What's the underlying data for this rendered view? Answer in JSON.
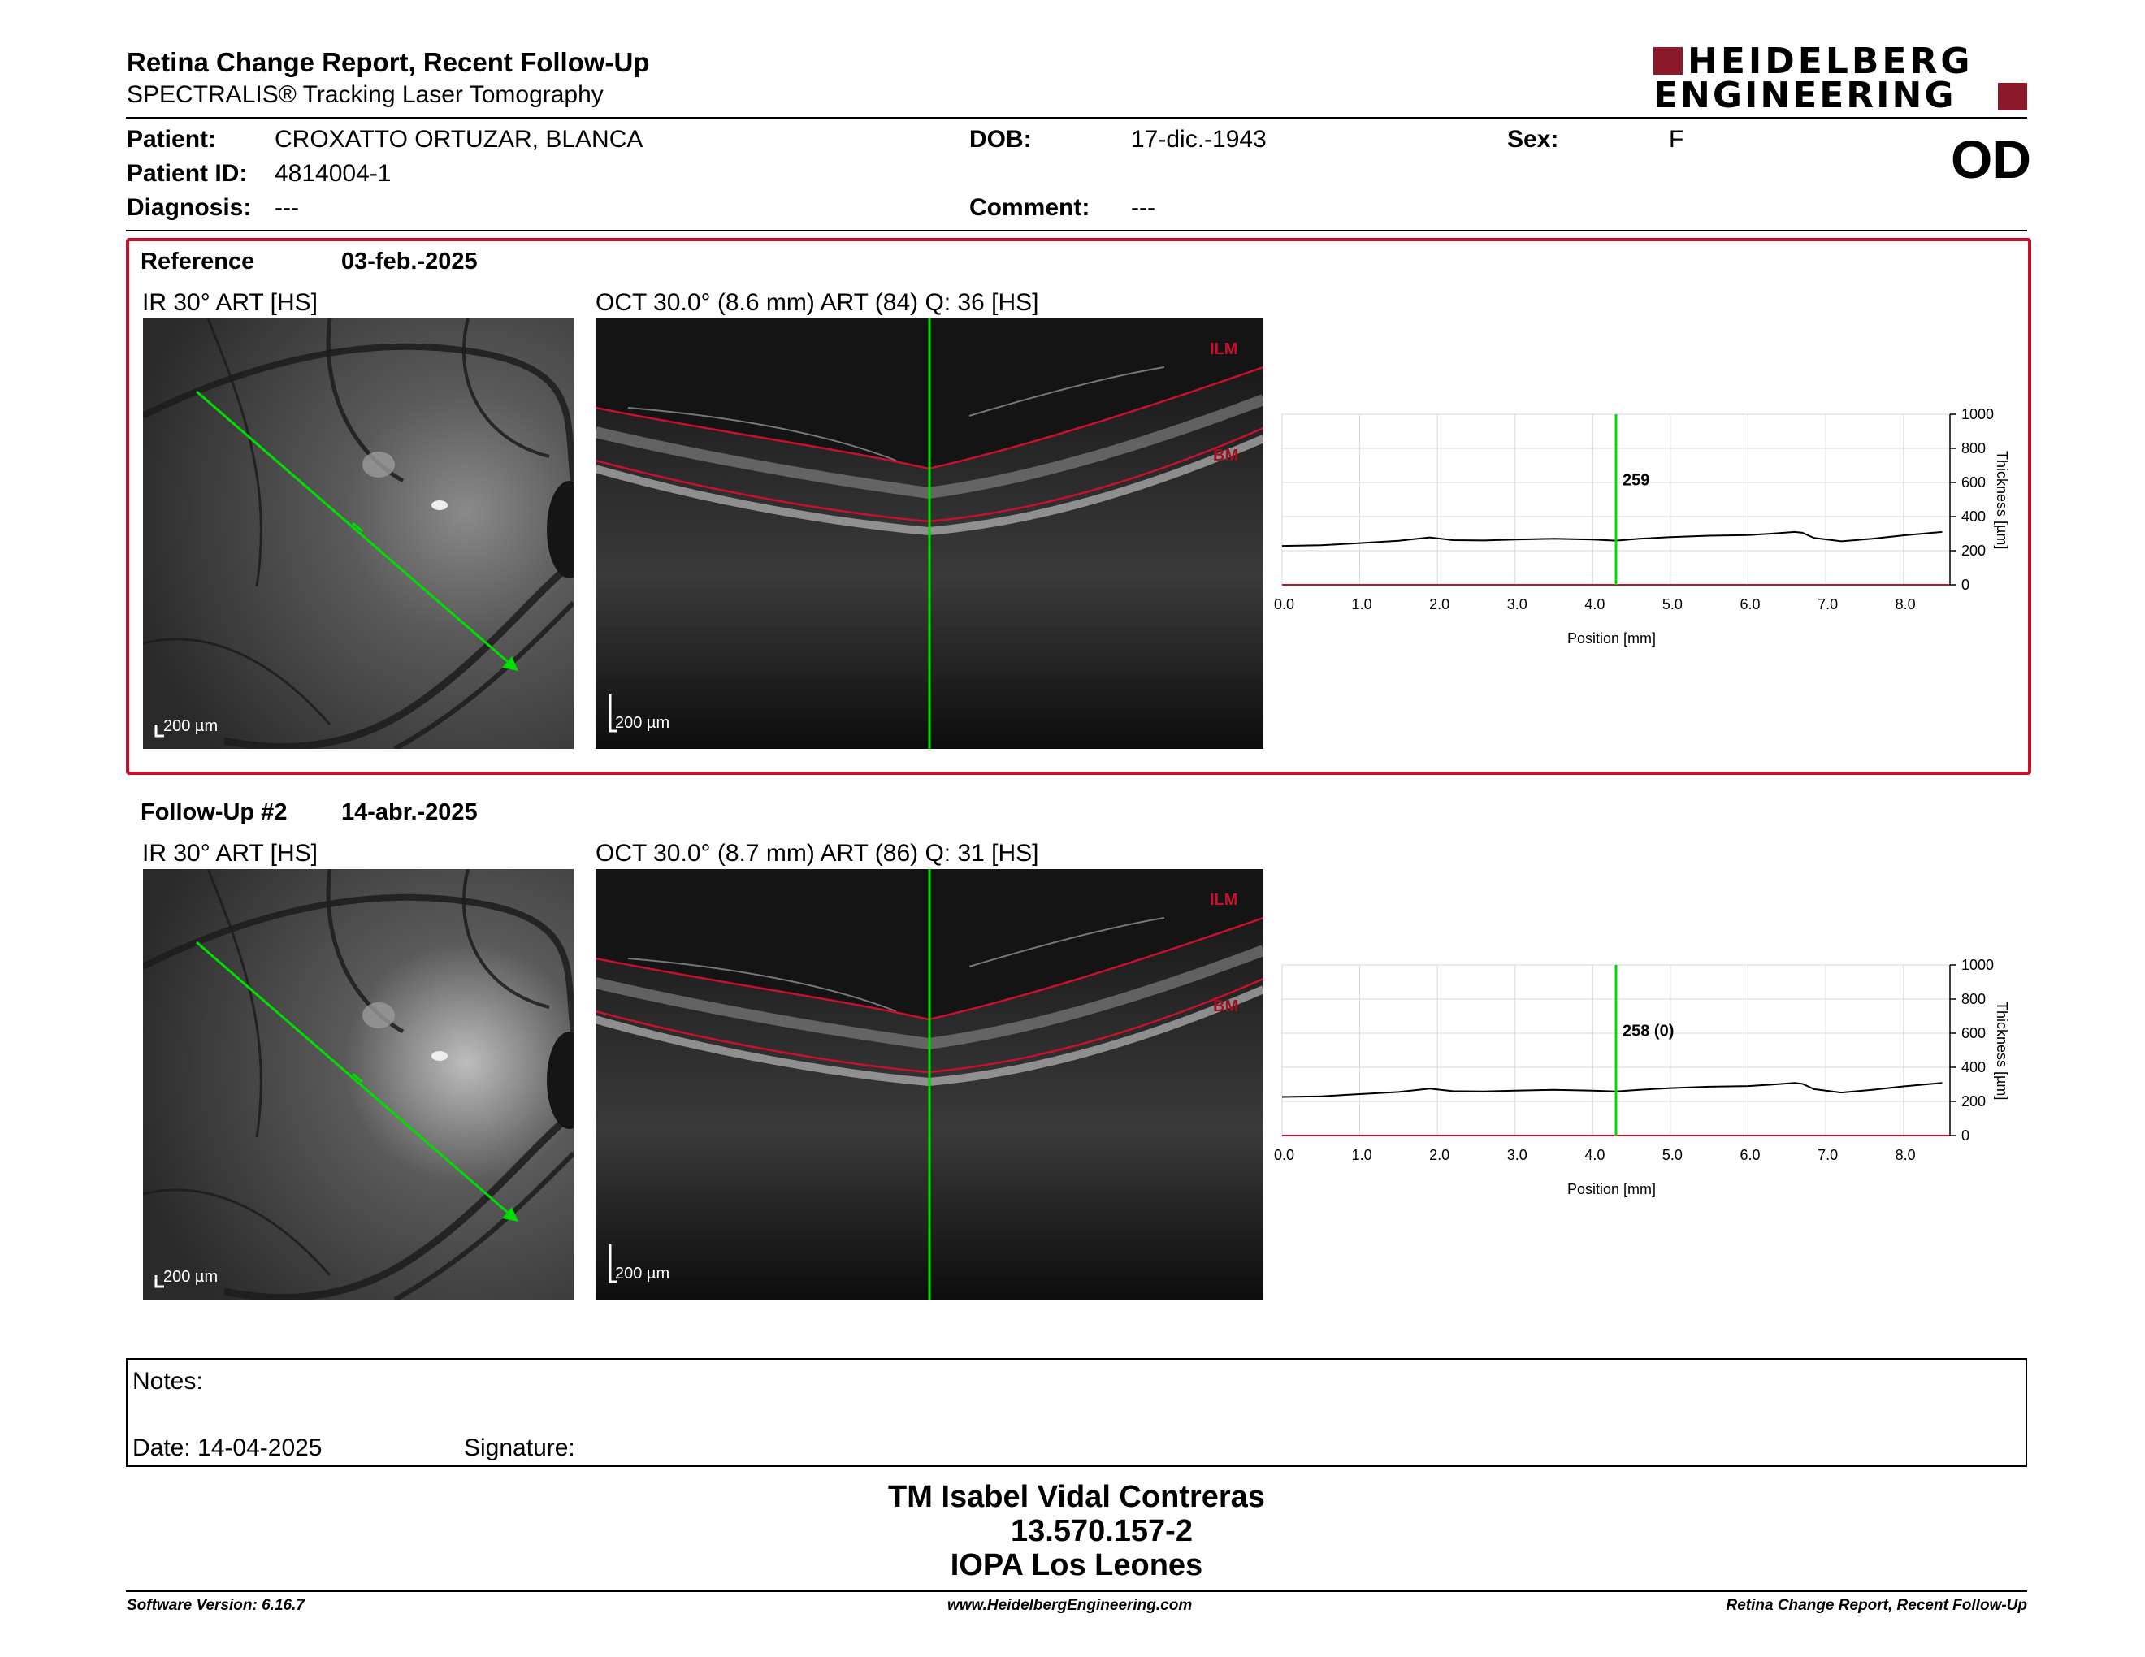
{
  "header": {
    "title": "Retina Change Report, Recent Follow-Up",
    "subtitle": "SPECTRALIS® Tracking Laser Tomography",
    "logo_line1": "HEIDELBERG",
    "logo_line2": "ENGINEERING",
    "eye": "OD"
  },
  "patient": {
    "name_label": "Patient:",
    "name": "CROXATTO ORTUZAR, BLANCA",
    "id_label": "Patient ID:",
    "id": "4814004-1",
    "diagnosis_label": "Diagnosis:",
    "diagnosis": "---",
    "dob_label": "DOB:",
    "dob": "17-dic.-1943",
    "comment_label": "Comment:",
    "comment": "---",
    "sex_label": "Sex:",
    "sex": "F"
  },
  "sections": [
    {
      "title": "Reference",
      "date": "03-feb.-2025",
      "ir_caption": "IR 30° ART [HS]",
      "oct_caption": "OCT 30.0° (8.6 mm) ART (84) Q: 36 [HS]",
      "ir_scale": "200 µm",
      "oct_scale": "200 µm",
      "layer_top": "ILM",
      "layer_bottom": "BM",
      "thickness_label": "259"
    },
    {
      "title": "Follow-Up #2",
      "date": "14-abr.-2025",
      "ir_caption": "IR 30° ART [HS]",
      "oct_caption": "OCT 30.0° (8.7 mm) ART (86) Q: 31 [HS]",
      "ir_scale": "200 µm",
      "oct_scale": "200 µm",
      "layer_top": "ILM",
      "layer_bottom": "BM",
      "thickness_label": "258 (0)"
    }
  ],
  "chart_data": [
    {
      "type": "line",
      "xlabel": "Position [mm]",
      "ylabel": "Thickness [µm]",
      "xlim": [
        0,
        8.6
      ],
      "ylim": [
        0,
        1000
      ],
      "xticks": [
        "0.0",
        "1.0",
        "2.0",
        "3.0",
        "4.0",
        "5.0",
        "6.0",
        "7.0",
        "8.0"
      ],
      "yticks": [
        "0",
        "200",
        "400",
        "600",
        "800",
        "1000"
      ],
      "marker_x": 4.3,
      "marker_label": "259",
      "x": [
        0,
        0.5,
        1,
        1.5,
        1.9,
        2.2,
        2.6,
        3,
        3.5,
        4,
        4.3,
        4.6,
        5,
        5.5,
        6,
        6.3,
        6.6,
        6.7,
        6.85,
        7.2,
        7.6,
        8,
        8.5
      ],
      "y": [
        228,
        232,
        245,
        258,
        278,
        262,
        260,
        265,
        270,
        265,
        259,
        270,
        280,
        288,
        292,
        300,
        310,
        305,
        275,
        255,
        270,
        290,
        310
      ]
    },
    {
      "type": "line",
      "xlabel": "Position [mm]",
      "ylabel": "Thickness [µm]",
      "xlim": [
        0,
        8.6
      ],
      "ylim": [
        0,
        1000
      ],
      "xticks": [
        "0.0",
        "1.0",
        "2.0",
        "3.0",
        "4.0",
        "5.0",
        "6.0",
        "7.0",
        "8.0"
      ],
      "yticks": [
        "0",
        "200",
        "400",
        "600",
        "800",
        "1000"
      ],
      "marker_x": 4.3,
      "marker_label": "258 (0)",
      "x": [
        0,
        0.5,
        1,
        1.5,
        1.9,
        2.2,
        2.6,
        3,
        3.5,
        4,
        4.3,
        4.6,
        5,
        5.5,
        6,
        6.3,
        6.6,
        6.7,
        6.85,
        7.2,
        7.6,
        8,
        8.5
      ],
      "y": [
        226,
        230,
        243,
        255,
        275,
        260,
        258,
        263,
        268,
        263,
        258,
        268,
        278,
        286,
        290,
        298,
        308,
        303,
        272,
        252,
        268,
        288,
        308
      ]
    }
  ],
  "notes": {
    "label": "Notes:",
    "date_label": "Date: 14-04-2025",
    "signature_label": "Signature:"
  },
  "signature_block": {
    "line1": "TM Isabel Vidal Contreras",
    "line2": "13.570.157-2",
    "line3": "IOPA Los Leones"
  },
  "footer": {
    "left": "Software Version: 6.16.7",
    "center": "www.HeidelbergEngineering.com",
    "right": "Retina Change Report, Recent Follow-Up"
  },
  "colors": {
    "accent_red": "#c8102e",
    "logo_red": "#8b1a2b",
    "scan_line": "#00dd00"
  }
}
